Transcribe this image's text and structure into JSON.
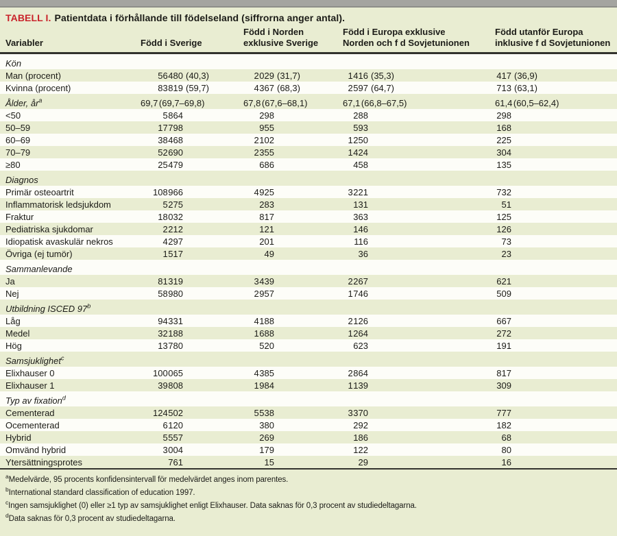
{
  "title": {
    "tag": "TABELL I.",
    "text": "Patientdata i förhållande till födelseland (siffrorna anger antal)."
  },
  "colors": {
    "accent_red": "#c9232a",
    "page_green": "#e9edd2",
    "row_white": "#fdfdf8",
    "rule_dark": "#32322d",
    "topbar_grey": "#a4a4a0"
  },
  "table": {
    "columns": [
      {
        "lines": [
          "Variabler"
        ]
      },
      {
        "lines": [
          "Född i Sverige"
        ]
      },
      {
        "lines": [
          "Född i Norden",
          "exklusive Sverige"
        ]
      },
      {
        "lines": [
          "Född i Europa exklusive",
          "Norden och f d Sovjetunionen"
        ]
      },
      {
        "lines": [
          "Född utanför Europa",
          "inklusive f d Sovjetunionen"
        ]
      }
    ],
    "rows": [
      {
        "type": "section",
        "label": "Kön"
      },
      {
        "type": "data",
        "label": "Man (procent)",
        "values": [
          "56 480 (40,3)",
          "2 029 (31,7)",
          "1 416 (35,3)",
          "417 (36,9)"
        ]
      },
      {
        "type": "data",
        "label": "Kvinna (procent)",
        "values": [
          "83 819 (59,7)",
          "4 367 (68,3)",
          "2 597 (64,7)",
          "713 (63,1)"
        ]
      },
      {
        "type": "section",
        "label": "Ålder, år",
        "sup": "a",
        "plain": true,
        "values": [
          "69,7 (69,7–69,8)",
          "67,8 (67,6–68,1)",
          "67,1 (66,8–67,5)",
          "61,4 (60,5–62,4)"
        ]
      },
      {
        "type": "data",
        "label": "<50",
        "values": [
          "5 864",
          "298",
          "288",
          "298"
        ]
      },
      {
        "type": "data",
        "label": "50–59",
        "values": [
          "17 798",
          "955",
          "593",
          "168"
        ]
      },
      {
        "type": "data",
        "label": "60–69",
        "values": [
          "38 468",
          "2 102",
          "1 250",
          "225"
        ]
      },
      {
        "type": "data",
        "label": "70–79",
        "values": [
          "52 690",
          "2 355",
          "1 424",
          "304"
        ]
      },
      {
        "type": "data",
        "label": "≥80",
        "values": [
          "25 479",
          "686",
          "458",
          "135"
        ]
      },
      {
        "type": "section",
        "label": "Diagnos"
      },
      {
        "type": "data",
        "label": "Primär osteoartrit",
        "values": [
          "108 966",
          "4 925",
          "3 221",
          "732"
        ]
      },
      {
        "type": "data",
        "label": "Inflammatorisk ledsjukdom",
        "values": [
          "5 275",
          "283",
          "131",
          "51"
        ]
      },
      {
        "type": "data",
        "label": "Fraktur",
        "values": [
          "18 032",
          "817",
          "363",
          "125"
        ]
      },
      {
        "type": "data",
        "label": "Pediatriska sjukdomar",
        "values": [
          "2 212",
          "121",
          "146",
          "126"
        ]
      },
      {
        "type": "data",
        "label": "Idiopatisk avaskulär nekros",
        "values": [
          "4 297",
          "201",
          "116",
          "73"
        ]
      },
      {
        "type": "data",
        "label": "Övriga (ej tumör)",
        "values": [
          "1 517",
          "49",
          "36",
          "23"
        ]
      },
      {
        "type": "section",
        "label": "Sammanlevande"
      },
      {
        "type": "data",
        "label": "Ja",
        "values": [
          "81 319",
          "3 439",
          "2 267",
          "621"
        ]
      },
      {
        "type": "data",
        "label": "Nej",
        "values": [
          "58 980",
          "2 957",
          "1 746",
          "509"
        ]
      },
      {
        "type": "section",
        "label": "Utbildning ISCED 97",
        "sup": "b"
      },
      {
        "type": "data",
        "label": "Låg",
        "values": [
          "94 331",
          "4 188",
          "2 126",
          "667"
        ]
      },
      {
        "type": "data",
        "label": "Medel",
        "values": [
          "32 188",
          "1 688",
          "1 264",
          "272"
        ]
      },
      {
        "type": "data",
        "label": "Hög",
        "values": [
          "13 780",
          "520",
          "623",
          "191"
        ]
      },
      {
        "type": "section",
        "label": "Samsjuklighet",
        "sup": "c"
      },
      {
        "type": "data",
        "label": "Elixhauser 0",
        "values": [
          "100 065",
          "4 385",
          "2 864",
          "817"
        ]
      },
      {
        "type": "data",
        "label": "Elixhauser 1",
        "values": [
          "39 808",
          "1 984",
          "1 139",
          "309"
        ]
      },
      {
        "type": "section",
        "label": "Typ av fixation",
        "sup": "d"
      },
      {
        "type": "data",
        "label": "Cementerad",
        "values": [
          "124 502",
          "5 538",
          "3 370",
          "777"
        ]
      },
      {
        "type": "data",
        "label": "Ocementerad",
        "values": [
          "6 120",
          "380",
          "292",
          "182"
        ]
      },
      {
        "type": "data",
        "label": "Hybrid",
        "values": [
          "5 557",
          "269",
          "186",
          "68"
        ]
      },
      {
        "type": "data",
        "label": "Omvänd hybrid",
        "values": [
          "3 004",
          "179",
          "122",
          "80"
        ]
      },
      {
        "type": "data",
        "label": "Ytersättningsprotes",
        "values": [
          "761",
          "15",
          "29",
          "16"
        ]
      }
    ]
  },
  "footnotes": [
    {
      "sup": "a",
      "text": "Medelvärde, 95 procents konfidensintervall för medelvärdet anges inom parentes."
    },
    {
      "sup": "b",
      "text": "International standard classification of education 1997."
    },
    {
      "sup": "c",
      "text": "Ingen samsjuklighet (0) eller ≥1 typ av samsjuklighet enligt Elixhauser. Data saknas för 0,3 procent av studiedeltagarna."
    },
    {
      "sup": "d",
      "text": "Data saknas för 0,3 procent av studiedeltagarna."
    }
  ]
}
